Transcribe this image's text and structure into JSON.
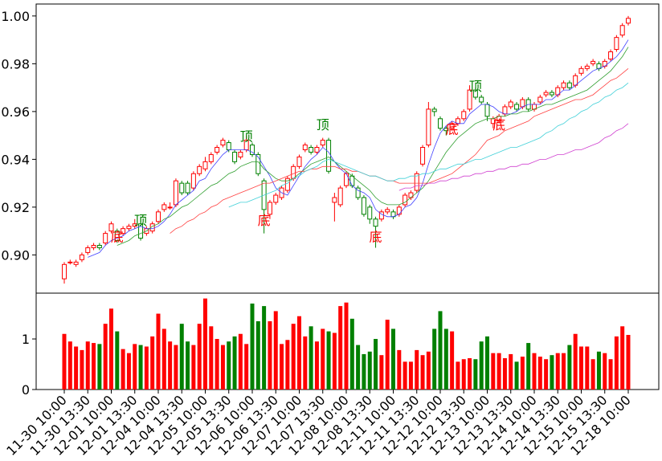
{
  "chart_data": {
    "type": "candlestick",
    "categories": [
      "11-30 10:00",
      null,
      null,
      null,
      "11-30 13:30",
      null,
      null,
      null,
      "12-01 10:00",
      null,
      null,
      null,
      "12-01 13:30",
      null,
      null,
      null,
      "12-04 10:00",
      null,
      null,
      null,
      "12-04 13:30",
      null,
      null,
      null,
      "12-05 10:00",
      null,
      null,
      null,
      "12-05 13:30",
      null,
      null,
      null,
      "12-06 10:00",
      null,
      null,
      null,
      "12-06 13:30",
      null,
      null,
      null,
      "12-07 10:00",
      null,
      null,
      null,
      "12-07 13:30",
      null,
      null,
      null,
      "12-08 10:00",
      null,
      null,
      null,
      "12-08 13:30",
      null,
      null,
      null,
      "12-11 10:00",
      null,
      null,
      null,
      "12-11 13:30",
      null,
      null,
      null,
      "12-12 10:00",
      null,
      null,
      null,
      "12-12 13:30",
      null,
      null,
      null,
      "12-13 10:00",
      null,
      null,
      null,
      "12-13 13:30",
      null,
      null,
      null,
      "12-14 10:00",
      null,
      null,
      null,
      "12-14 13:30",
      null,
      null,
      null,
      "12-15 10:00",
      null,
      null,
      null,
      "12-15 13:30",
      null,
      null,
      null,
      "12-18 10:00"
    ],
    "open": [
      0.89,
      0.897,
      0.896,
      0.898,
      0.901,
      0.903,
      0.904,
      0.905,
      0.91,
      0.91,
      0.909,
      0.911,
      0.912,
      0.913,
      0.909,
      0.91,
      0.914,
      0.919,
      0.92,
      0.921,
      0.93,
      0.93,
      0.928,
      0.934,
      0.936,
      0.939,
      0.943,
      0.946,
      0.947,
      0.943,
      0.941,
      0.944,
      0.946,
      0.942,
      0.931,
      0.917,
      0.922,
      0.924,
      0.927,
      0.932,
      0.937,
      0.944,
      0.945,
      0.943,
      0.946,
      0.948,
      0.922,
      0.921,
      0.929,
      0.933,
      0.928,
      0.924,
      0.92,
      0.915,
      0.915,
      0.918,
      0.918,
      0.917,
      0.921,
      0.924,
      0.927,
      0.938,
      0.946,
      0.961,
      0.957,
      0.953,
      0.953,
      0.955,
      0.957,
      0.961,
      0.969,
      0.966,
      0.963,
      0.955,
      0.956,
      0.959,
      0.962,
      0.963,
      0.962,
      0.965,
      0.961,
      0.964,
      0.967,
      0.968,
      0.967,
      0.97,
      0.972,
      0.971,
      0.976,
      0.978,
      0.98,
      0.98,
      0.979,
      0.982,
      0.986,
      0.992,
      0.997
    ],
    "high": [
      0.897,
      0.898,
      0.898,
      0.901,
      0.904,
      0.905,
      0.905,
      0.91,
      0.914,
      0.911,
      0.912,
      0.913,
      0.915,
      0.916,
      0.912,
      0.914,
      0.919,
      0.922,
      0.922,
      0.932,
      0.931,
      0.931,
      0.935,
      0.938,
      0.941,
      0.943,
      0.946,
      0.949,
      0.948,
      0.944,
      0.944,
      0.95,
      0.947,
      0.943,
      0.932,
      0.923,
      0.926,
      0.929,
      0.933,
      0.938,
      0.942,
      0.947,
      0.946,
      0.946,
      0.949,
      0.949,
      0.926,
      0.929,
      0.935,
      0.934,
      0.929,
      0.925,
      0.921,
      0.916,
      0.919,
      0.92,
      0.919,
      0.921,
      0.926,
      0.927,
      0.935,
      0.946,
      0.964,
      0.962,
      0.958,
      0.954,
      0.956,
      0.958,
      0.961,
      0.971,
      0.97,
      0.967,
      0.964,
      0.958,
      0.959,
      0.963,
      0.965,
      0.964,
      0.966,
      0.966,
      0.964,
      0.967,
      0.969,
      0.969,
      0.971,
      0.973,
      0.973,
      0.976,
      0.979,
      0.98,
      0.982,
      0.981,
      0.982,
      0.986,
      0.992,
      0.997,
      1.0
    ],
    "low": [
      0.888,
      0.896,
      0.895,
      0.897,
      0.9,
      0.902,
      0.902,
      0.904,
      0.909,
      0.905,
      0.908,
      0.91,
      0.911,
      0.906,
      0.908,
      0.909,
      0.913,
      0.918,
      0.919,
      0.92,
      0.925,
      0.925,
      0.927,
      0.933,
      0.935,
      0.938,
      0.942,
      0.945,
      0.943,
      0.938,
      0.94,
      0.943,
      0.941,
      0.933,
      0.909,
      0.915,
      0.921,
      0.923,
      0.926,
      0.931,
      0.936,
      0.943,
      0.942,
      0.942,
      0.945,
      0.934,
      0.914,
      0.92,
      0.928,
      0.928,
      0.923,
      0.916,
      0.913,
      0.903,
      0.914,
      0.917,
      0.915,
      0.916,
      0.92,
      0.923,
      0.926,
      0.937,
      0.945,
      0.958,
      0.952,
      0.95,
      0.952,
      0.954,
      0.956,
      0.96,
      0.965,
      0.963,
      0.956,
      0.953,
      0.955,
      0.958,
      0.961,
      0.96,
      0.961,
      0.96,
      0.96,
      0.963,
      0.966,
      0.966,
      0.966,
      0.969,
      0.969,
      0.97,
      0.975,
      0.977,
      0.979,
      0.977,
      0.978,
      0.981,
      0.985,
      0.991,
      0.996
    ],
    "close": [
      0.896,
      0.897,
      0.897,
      0.9,
      0.903,
      0.904,
      0.903,
      0.909,
      0.913,
      0.906,
      0.911,
      0.912,
      0.913,
      0.907,
      0.911,
      0.913,
      0.918,
      0.921,
      0.92,
      0.931,
      0.926,
      0.926,
      0.934,
      0.937,
      0.939,
      0.942,
      0.945,
      0.948,
      0.944,
      0.939,
      0.943,
      0.948,
      0.942,
      0.934,
      0.919,
      0.922,
      0.925,
      0.928,
      0.932,
      0.937,
      0.941,
      0.946,
      0.943,
      0.945,
      0.948,
      0.935,
      0.924,
      0.928,
      0.934,
      0.929,
      0.924,
      0.917,
      0.915,
      0.912,
      0.918,
      0.919,
      0.916,
      0.92,
      0.925,
      0.926,
      0.934,
      0.945,
      0.961,
      0.96,
      0.953,
      0.952,
      0.955,
      0.957,
      0.96,
      0.969,
      0.966,
      0.964,
      0.958,
      0.957,
      0.958,
      0.962,
      0.964,
      0.961,
      0.965,
      0.961,
      0.963,
      0.966,
      0.968,
      0.967,
      0.97,
      0.972,
      0.97,
      0.975,
      0.978,
      0.979,
      0.981,
      0.978,
      0.981,
      0.985,
      0.991,
      0.996,
      0.999
    ],
    "up_color": "#ff0000",
    "down_color": "#008000",
    "ylim": [
      0.884,
      1.005
    ],
    "yticks": [
      {
        "value": 0.9,
        "label": "0.90"
      },
      0.92,
      0.94,
      0.96,
      0.98,
      {
        "value": 1.0,
        "label": "1.00"
      }
    ],
    "series": [
      {
        "color": "#4040ff",
        "values": [
          null,
          null,
          null,
          null,
          0.899,
          0.9,
          0.901,
          0.904,
          0.906,
          0.907,
          0.908,
          0.91,
          0.911,
          0.912,
          0.911,
          0.911,
          0.912,
          0.914,
          0.917,
          0.921,
          0.923,
          0.925,
          0.927,
          0.931,
          0.932,
          0.936,
          0.939,
          0.942,
          0.944,
          0.944,
          0.944,
          0.944,
          0.943,
          0.941,
          0.937,
          0.933,
          0.928,
          0.926,
          0.925,
          0.929,
          0.933,
          0.937,
          0.94,
          0.942,
          0.945,
          0.943,
          0.939,
          0.936,
          0.934,
          0.929,
          0.927,
          0.926,
          0.924,
          0.919,
          0.917,
          0.916,
          0.916,
          0.917,
          0.92,
          0.921,
          0.924,
          0.93,
          0.938,
          0.945,
          0.951,
          0.954,
          0.956,
          0.955,
          0.955,
          0.959,
          0.961,
          0.963,
          0.963,
          0.962,
          0.96,
          0.959,
          0.959,
          0.96,
          0.962,
          0.963,
          0.963,
          0.963,
          0.965,
          0.965,
          0.967,
          0.969,
          0.969,
          0.971,
          0.973,
          0.975,
          0.977,
          0.978,
          0.979,
          0.981,
          0.983,
          0.986,
          0.99
        ]
      },
      {
        "color": "#2e9e2e",
        "values": [
          null,
          null,
          null,
          null,
          null,
          null,
          null,
          null,
          null,
          0.904,
          0.905,
          0.906,
          0.908,
          0.909,
          0.91,
          0.912,
          0.913,
          0.915,
          0.916,
          0.918,
          0.92,
          0.921,
          0.923,
          0.925,
          0.927,
          0.929,
          0.93,
          0.932,
          0.934,
          0.935,
          0.937,
          0.938,
          0.939,
          0.939,
          0.936,
          0.934,
          0.932,
          0.931,
          0.931,
          0.932,
          0.934,
          0.936,
          0.938,
          0.939,
          0.94,
          0.941,
          0.939,
          0.937,
          0.935,
          0.933,
          0.931,
          0.929,
          0.927,
          0.924,
          0.922,
          0.921,
          0.921,
          0.921,
          0.922,
          0.924,
          0.926,
          0.928,
          0.931,
          0.935,
          0.939,
          0.943,
          0.946,
          0.949,
          0.951,
          0.953,
          0.955,
          0.956,
          0.957,
          0.957,
          0.958,
          0.958,
          0.959,
          0.959,
          0.96,
          0.96,
          0.961,
          0.962,
          0.963,
          0.963,
          0.964,
          0.965,
          0.966,
          0.967,
          0.968,
          0.969,
          0.971,
          0.973,
          0.975,
          0.977,
          0.98,
          0.983,
          0.987
        ]
      },
      {
        "color": "#ff4040",
        "values": [
          null,
          null,
          null,
          null,
          null,
          null,
          null,
          null,
          null,
          null,
          null,
          null,
          null,
          null,
          null,
          null,
          null,
          null,
          0.909,
          0.911,
          0.912,
          0.914,
          0.915,
          0.917,
          0.918,
          0.92,
          0.921,
          0.923,
          0.924,
          0.925,
          0.926,
          0.927,
          0.928,
          0.929,
          0.93,
          0.93,
          0.931,
          0.932,
          0.933,
          0.934,
          0.935,
          0.935,
          0.936,
          0.936,
          0.937,
          0.937,
          0.937,
          0.936,
          0.936,
          0.935,
          0.935,
          0.934,
          0.933,
          0.933,
          0.932,
          0.931,
          0.931,
          0.93,
          0.93,
          0.93,
          0.93,
          0.93,
          0.93,
          0.931,
          0.932,
          0.933,
          0.934,
          0.936,
          0.938,
          0.94,
          0.942,
          0.945,
          0.948,
          0.949,
          0.95,
          0.952,
          0.953,
          0.954,
          0.955,
          0.956,
          0.958,
          0.959,
          0.96,
          0.961,
          0.962,
          0.963,
          0.964,
          0.965,
          0.965,
          0.966,
          0.967,
          0.969,
          0.971,
          0.973,
          0.974,
          0.976,
          0.978
        ]
      },
      {
        "color": "#40d0d8",
        "values": [
          null,
          null,
          null,
          null,
          null,
          null,
          null,
          null,
          null,
          null,
          null,
          null,
          null,
          null,
          null,
          null,
          null,
          null,
          null,
          null,
          null,
          null,
          null,
          null,
          null,
          null,
          null,
          null,
          0.92,
          0.921,
          0.922,
          0.922,
          0.923,
          0.924,
          0.925,
          0.926,
          0.927,
          0.929,
          0.93,
          0.932,
          0.933,
          0.935,
          0.936,
          0.937,
          0.939,
          0.94,
          0.939,
          0.938,
          0.937,
          0.936,
          0.935,
          0.934,
          0.933,
          0.933,
          0.932,
          0.931,
          0.931,
          0.932,
          0.932,
          0.933,
          0.933,
          0.934,
          0.934,
          0.935,
          0.936,
          0.936,
          0.937,
          0.938,
          0.938,
          0.939,
          0.94,
          0.94,
          0.941,
          0.942,
          0.943,
          0.944,
          0.945,
          0.945,
          0.946,
          0.947,
          0.948,
          0.949,
          0.951,
          0.952,
          0.954,
          0.955,
          0.957,
          0.958,
          0.96,
          0.961,
          0.963,
          0.964,
          0.966,
          0.967,
          0.969,
          0.97,
          0.972
        ]
      },
      {
        "color": "#d040d0",
        "values": [
          null,
          null,
          null,
          null,
          null,
          null,
          null,
          null,
          null,
          null,
          null,
          null,
          null,
          null,
          null,
          null,
          null,
          null,
          null,
          null,
          null,
          null,
          null,
          null,
          null,
          null,
          null,
          null,
          null,
          null,
          null,
          null,
          null,
          null,
          null,
          null,
          null,
          null,
          null,
          null,
          null,
          null,
          null,
          null,
          null,
          null,
          null,
          null,
          null,
          null,
          null,
          null,
          null,
          null,
          null,
          null,
          null,
          0.927,
          0.928,
          0.928,
          0.929,
          0.929,
          0.93,
          0.93,
          0.931,
          0.931,
          0.932,
          0.932,
          0.933,
          0.933,
          0.934,
          0.934,
          0.935,
          0.935,
          0.936,
          0.936,
          0.937,
          0.937,
          0.938,
          0.938,
          0.939,
          0.94,
          0.94,
          0.941,
          0.942,
          0.942,
          0.943,
          0.944,
          0.944,
          0.945,
          0.946,
          0.947,
          0.949,
          0.95,
          0.952,
          0.953,
          0.955
        ]
      }
    ],
    "annotations": [
      {
        "text": "底",
        "at": 9,
        "y": 0.908,
        "color": "#ff0000"
      },
      {
        "text": "顶",
        "at": 13,
        "y": 0.915,
        "color": "#008000"
      },
      {
        "text": "顶",
        "at": 31,
        "y": 0.95,
        "color": "#008000"
      },
      {
        "text": "底",
        "at": 34,
        "y": 0.915,
        "color": "#ff0000"
      },
      {
        "text": "顶",
        "at": 44,
        "y": 0.955,
        "color": "#008000"
      },
      {
        "text": "底",
        "at": 53,
        "y": 0.908,
        "color": "#ff0000"
      },
      {
        "text": "底",
        "at": 66,
        "y": 0.953,
        "color": "#ff0000"
      },
      {
        "text": "顶",
        "at": 70,
        "y": 0.971,
        "color": "#008000"
      },
      {
        "text": "底",
        "at": 74,
        "y": 0.955,
        "color": "#ff0000"
      }
    ],
    "volume": {
      "type": "bar",
      "values": [
        1.1,
        0.95,
        0.85,
        0.78,
        0.95,
        0.92,
        0.9,
        1.3,
        1.6,
        1.15,
        0.8,
        0.72,
        0.9,
        0.88,
        0.85,
        1.05,
        1.5,
        1.2,
        0.95,
        0.88,
        1.3,
        0.95,
        0.88,
        1.3,
        1.8,
        1.25,
        1.0,
        0.88,
        0.95,
        1.05,
        1.1,
        0.9,
        1.7,
        1.35,
        1.65,
        1.35,
        1.55,
        0.9,
        0.98,
        1.3,
        1.45,
        1.05,
        1.25,
        0.95,
        1.2,
        1.15,
        1.12,
        1.65,
        1.72,
        1.4,
        0.88,
        0.7,
        0.75,
        1.0,
        0.68,
        1.38,
        1.2,
        0.78,
        0.55,
        0.55,
        0.78,
        0.68,
        0.75,
        1.2,
        1.55,
        1.2,
        1.15,
        0.55,
        0.6,
        0.62,
        0.6,
        0.95,
        1.05,
        0.72,
        0.72,
        0.62,
        0.7,
        0.55,
        0.65,
        0.92,
        0.72,
        0.65,
        0.6,
        0.68,
        0.72,
        0.72,
        0.88,
        1.1,
        0.85,
        0.85,
        0.6,
        0.75,
        0.72,
        0.6,
        1.05,
        1.25,
        1.08
      ],
      "ylim": [
        0,
        1.89
      ],
      "yticks": [
        0,
        1
      ]
    }
  }
}
